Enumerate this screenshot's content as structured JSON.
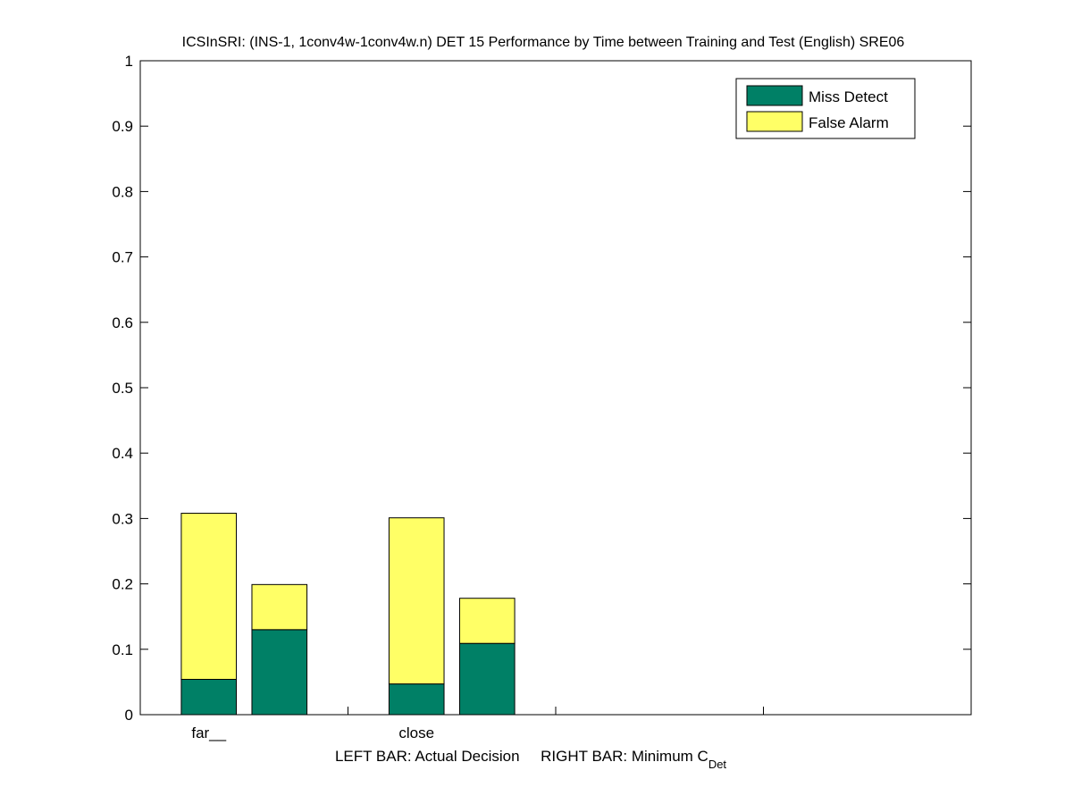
{
  "chart_data": {
    "type": "bar",
    "stacked": true,
    "title": "ICSInSRI: (INS-1, 1conv4w-1conv4w.n) DET 15 Performance by Time between Training and Test (English) SRE06",
    "xlabel_main": "LEFT BAR: Actual Decision     RIGHT BAR: Minimum C",
    "xlabel_subscript": "Det",
    "categories": [
      "far__",
      "close"
    ],
    "bar_roles": [
      "Actual Decision",
      "Minimum C_Det"
    ],
    "series": [
      {
        "name": "Miss Detect",
        "color": "#008066",
        "values": [
          [
            0.054,
            0.13
          ],
          [
            0.047,
            0.109
          ]
        ]
      },
      {
        "name": "False Alarm",
        "color": "#ffff66",
        "values": [
          [
            0.254,
            0.069
          ],
          [
            0.254,
            0.069
          ]
        ]
      }
    ],
    "totals": [
      [
        0.308,
        0.199
      ],
      [
        0.301,
        0.178
      ]
    ],
    "ylim": [
      0,
      1
    ],
    "xlim": [
      0,
      4
    ],
    "yticks": [
      "0",
      "0.1",
      "0.2",
      "0.3",
      "0.4",
      "0.5",
      "0.6",
      "0.7",
      "0.8",
      "0.9",
      "1"
    ],
    "grid": false,
    "legend_position": "top-right"
  }
}
